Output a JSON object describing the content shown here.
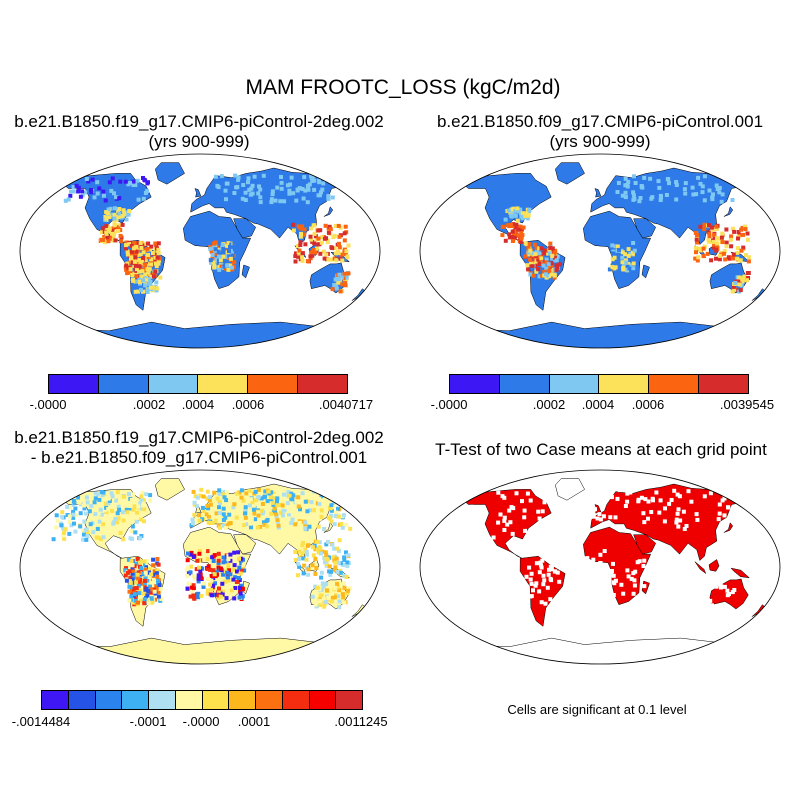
{
  "main_title": "MAM FROOTC_LOSS (kgC/m2d)",
  "panels": {
    "top_left": {
      "title_line1": "b.e21.B1850.f19_g17.CMIP6-piControl-2deg.002",
      "title_line2": "(yrs 900-999)",
      "colorbar": {
        "colors": [
          "#3d18f5",
          "#2d7ae8",
          "#7fc8f2",
          "#fbe25a",
          "#fb6410",
          "#d72c2c"
        ],
        "labels": [
          "-.0000",
          ".0002",
          ".0004",
          ".0006",
          ".0040717"
        ]
      }
    },
    "top_right": {
      "title_line1": "b.e21.B1850.f09_g17.CMIP6-piControl.001",
      "title_line2": "(yrs 900-999)",
      "colorbar": {
        "colors": [
          "#3d18f5",
          "#2d7ae8",
          "#7fc8f2",
          "#fbe25a",
          "#fb6410",
          "#d72c2c"
        ],
        "labels": [
          "-.0000",
          ".0002",
          ".0004",
          ".0006",
          ".0039545"
        ]
      }
    },
    "bottom_left": {
      "title_line1": "b.e21.B1850.f19_g17.CMIP6-piControl-2deg.002",
      "title_line2": "- b.e21.B1850.f09_g17.CMIP6-piControl.001",
      "colorbar": {
        "colors": [
          "#3f17f5",
          "#2553e6",
          "#2b84ed",
          "#3eb1f2",
          "#aee0f2",
          "#fff9a6",
          "#fde24e",
          "#fcb81c",
          "#fb7010",
          "#f42c10",
          "#f60000",
          "#d72c2c"
        ],
        "labels": [
          "-.0014484",
          "-.0001",
          "-.0000",
          ".0001",
          ".0011245"
        ]
      }
    },
    "bottom_right": {
      "title": "T-Test of two Case means at each grid point",
      "note": "Cells are significant at 0.1 level",
      "sig_color": "#ee0000"
    }
  }
}
